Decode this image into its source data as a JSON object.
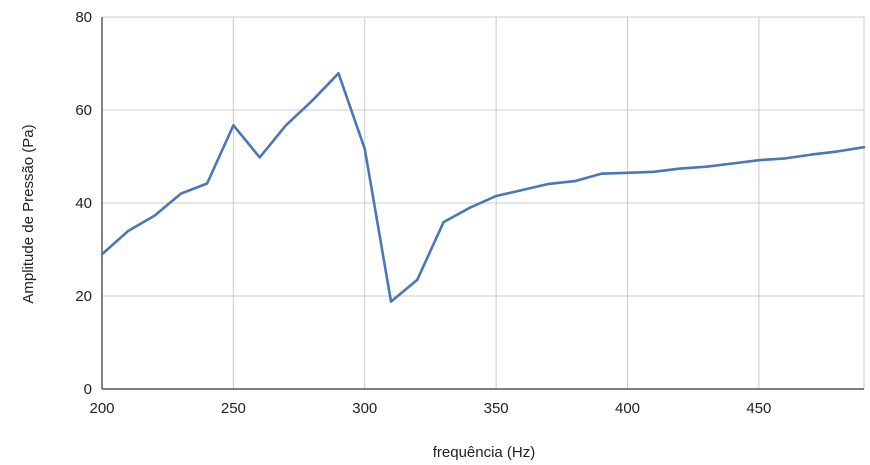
{
  "chart_data": {
    "type": "line",
    "title": "",
    "xlabel": "frequência (Hz)",
    "ylabel": "Amplitude de Pressão (Pa)",
    "xlim": [
      200,
      490
    ],
    "ylim": [
      0,
      80
    ],
    "x_ticks": [
      200,
      250,
      300,
      350,
      400,
      450
    ],
    "y_ticks": [
      0,
      20,
      40,
      60,
      80
    ],
    "grid": true,
    "legend": "none",
    "series": [
      {
        "color": "#4a77b6",
        "x": [
          200,
          210,
          220,
          230,
          240,
          250,
          260,
          270,
          280,
          290,
          300,
          310,
          320,
          330,
          340,
          350,
          360,
          370,
          380,
          390,
          400,
          410,
          420,
          430,
          440,
          450,
          460,
          470,
          480,
          490
        ],
        "y": [
          29,
          34,
          37.3,
          42,
          44.2,
          56.7,
          49.8,
          56.7,
          62,
          67.9,
          51.6,
          18.8,
          23.5,
          35.9,
          39,
          41.5,
          42.8,
          44.1,
          44.7,
          46.3,
          46.5,
          46.7,
          47.4,
          47.8,
          48.5,
          49.2,
          49.6,
          50.4,
          51.1,
          52
        ]
      }
    ]
  }
}
